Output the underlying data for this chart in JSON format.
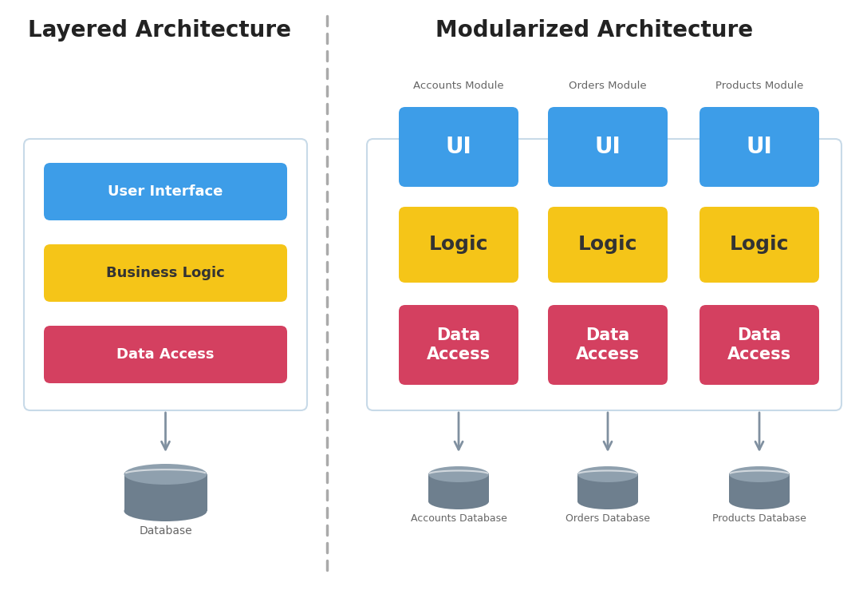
{
  "bg_color": "#ffffff",
  "title_left": "Layered Architecture",
  "title_right": "Modularized Architecture",
  "title_fontsize": 20,
  "title_fontweight": "bold",
  "colors": {
    "blue": "#3d9de8",
    "yellow": "#f5c518",
    "red": "#d44060",
    "box_border": "#c8dae8",
    "arrow": "#8090a0",
    "db_body": "#6e7f8e",
    "db_top": "#8fa0ae",
    "db_highlight": "#aabbc8",
    "dashed_line": "#aaaaaa",
    "text_white": "#ffffff",
    "text_dark": "#222222",
    "module_label": "#666666"
  },
  "left_layers": [
    {
      "label": "User Interface",
      "color": "blue"
    },
    {
      "label": "Business Logic",
      "color": "yellow",
      "text_color": "dark"
    },
    {
      "label": "Data Access",
      "color": "red"
    }
  ],
  "right_modules": [
    {
      "title": "Accounts Module",
      "db_label": "Accounts Database",
      "layers": [
        {
          "label": "UI",
          "color": "blue"
        },
        {
          "label": "Logic",
          "color": "yellow"
        },
        {
          "label": "Data\nAccess",
          "color": "red"
        }
      ]
    },
    {
      "title": "Orders Module",
      "db_label": "Orders Database",
      "layers": [
        {
          "label": "UI",
          "color": "blue"
        },
        {
          "label": "Logic",
          "color": "yellow"
        },
        {
          "label": "Data\nAccess",
          "color": "red"
        }
      ]
    },
    {
      "title": "Products Module",
      "db_label": "Products Database",
      "layers": [
        {
          "label": "UI",
          "color": "blue"
        },
        {
          "label": "Logic",
          "color": "yellow"
        },
        {
          "label": "Data\nAccess",
          "color": "red"
        }
      ]
    }
  ]
}
